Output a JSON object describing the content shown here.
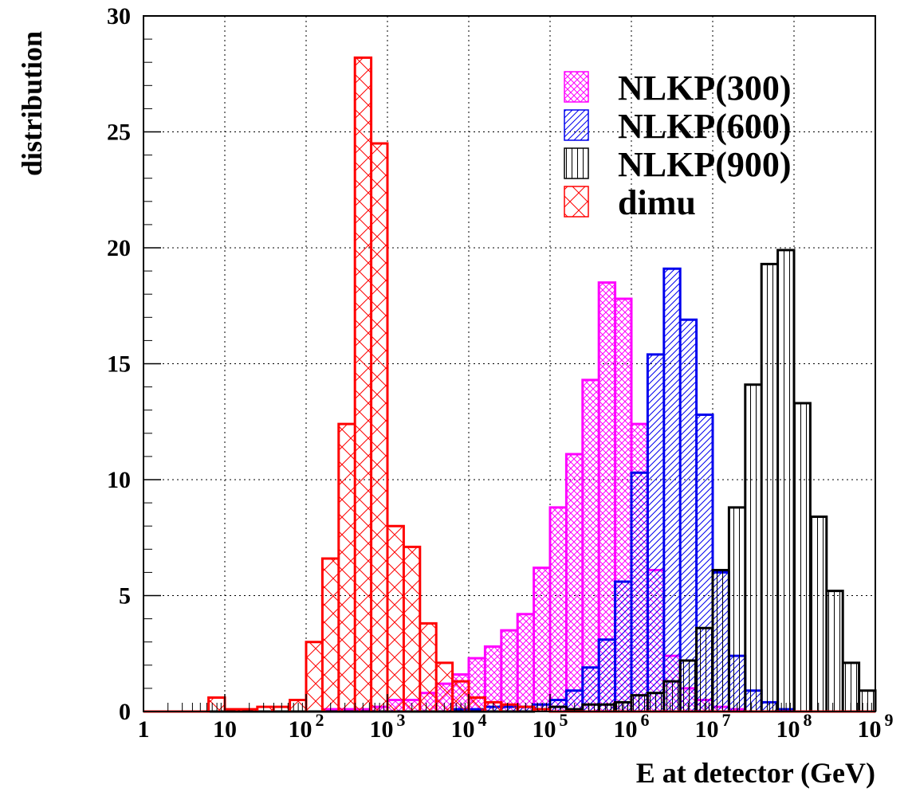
{
  "chart_data": {
    "type": "histogram",
    "xlabel": "E at detector (GeV)",
    "ylabel": "distribution",
    "x_scale": "log10",
    "xlim_log10": [
      0,
      9
    ],
    "ylim": [
      0,
      30
    ],
    "grid": true,
    "legend_position": "top-right",
    "bin_width_log10": 0.2,
    "x_ticks": [
      {
        "log10": 0,
        "base": "1",
        "exp": ""
      },
      {
        "log10": 1,
        "base": "10",
        "exp": ""
      },
      {
        "log10": 2,
        "base": "10",
        "exp": "2"
      },
      {
        "log10": 3,
        "base": "10",
        "exp": "3"
      },
      {
        "log10": 4,
        "base": "10",
        "exp": "4"
      },
      {
        "log10": 5,
        "base": "10",
        "exp": "5"
      },
      {
        "log10": 6,
        "base": "10",
        "exp": "6"
      },
      {
        "log10": 7,
        "base": "10",
        "exp": "7"
      },
      {
        "log10": 8,
        "base": "10",
        "exp": "8"
      },
      {
        "log10": 9,
        "base": "10",
        "exp": "9"
      }
    ],
    "y_ticks": [
      "0",
      "5",
      "10",
      "15",
      "20",
      "25",
      "30"
    ],
    "series": [
      {
        "name": "NLKP(300)",
        "color": "#ff00ff",
        "hatch": "crosshatch-dense",
        "bins": [
          {
            "x_log10": 2.4,
            "y": 0.1
          },
          {
            "x_log10": 2.6,
            "y": 0.1
          },
          {
            "x_log10": 2.8,
            "y": 0.1
          },
          {
            "x_log10": 3.0,
            "y": 0.2
          },
          {
            "x_log10": 3.2,
            "y": 0.5
          },
          {
            "x_log10": 3.4,
            "y": 0.5
          },
          {
            "x_log10": 3.6,
            "y": 0.8
          },
          {
            "x_log10": 3.8,
            "y": 1.2
          },
          {
            "x_log10": 4.0,
            "y": 1.6
          },
          {
            "x_log10": 4.2,
            "y": 2.3
          },
          {
            "x_log10": 4.4,
            "y": 2.8
          },
          {
            "x_log10": 4.6,
            "y": 3.5
          },
          {
            "x_log10": 4.8,
            "y": 4.2
          },
          {
            "x_log10": 5.0,
            "y": 6.2
          },
          {
            "x_log10": 5.2,
            "y": 8.8
          },
          {
            "x_log10": 5.4,
            "y": 11.1
          },
          {
            "x_log10": 5.6,
            "y": 14.3
          },
          {
            "x_log10": 5.8,
            "y": 18.5
          },
          {
            "x_log10": 6.0,
            "y": 17.8
          },
          {
            "x_log10": 6.2,
            "y": 12.4
          },
          {
            "x_log10": 6.4,
            "y": 6.1
          },
          {
            "x_log10": 6.6,
            "y": 2.4
          },
          {
            "x_log10": 6.8,
            "y": 1.0
          },
          {
            "x_log10": 7.0,
            "y": 0.5
          },
          {
            "x_log10": 7.2,
            "y": 0.2
          },
          {
            "x_log10": 7.4,
            "y": 0.1
          }
        ]
      },
      {
        "name": "NLKP(600)",
        "color": "#0000ee",
        "hatch": "diagonal",
        "bins": [
          {
            "x_log10": 4.0,
            "y": 0.1
          },
          {
            "x_log10": 4.2,
            "y": 0.1
          },
          {
            "x_log10": 4.4,
            "y": 0.2
          },
          {
            "x_log10": 4.6,
            "y": 0.2
          },
          {
            "x_log10": 4.8,
            "y": 0.2
          },
          {
            "x_log10": 5.0,
            "y": 0.3
          },
          {
            "x_log10": 5.2,
            "y": 0.5
          },
          {
            "x_log10": 5.4,
            "y": 0.9
          },
          {
            "x_log10": 5.6,
            "y": 1.9
          },
          {
            "x_log10": 5.8,
            "y": 3.1
          },
          {
            "x_log10": 6.0,
            "y": 5.6
          },
          {
            "x_log10": 6.2,
            "y": 10.3
          },
          {
            "x_log10": 6.4,
            "y": 15.4
          },
          {
            "x_log10": 6.6,
            "y": 19.1
          },
          {
            "x_log10": 6.8,
            "y": 16.9
          },
          {
            "x_log10": 7.0,
            "y": 12.8
          },
          {
            "x_log10": 7.2,
            "y": 6.0
          },
          {
            "x_log10": 7.4,
            "y": 2.4
          },
          {
            "x_log10": 7.6,
            "y": 0.9
          },
          {
            "x_log10": 7.8,
            "y": 0.4
          },
          {
            "x_log10": 8.0,
            "y": 0.1
          }
        ]
      },
      {
        "name": "NLKP(900)",
        "color": "#000000",
        "hatch": "vertical",
        "bins": [
          {
            "x_log10": 5.0,
            "y": 0.1
          },
          {
            "x_log10": 5.2,
            "y": 0.2
          },
          {
            "x_log10": 5.4,
            "y": 0.1
          },
          {
            "x_log10": 5.6,
            "y": 0.3
          },
          {
            "x_log10": 5.8,
            "y": 0.3
          },
          {
            "x_log10": 6.0,
            "y": 0.4
          },
          {
            "x_log10": 6.2,
            "y": 0.7
          },
          {
            "x_log10": 6.4,
            "y": 0.8
          },
          {
            "x_log10": 6.6,
            "y": 1.3
          },
          {
            "x_log10": 6.8,
            "y": 2.2
          },
          {
            "x_log10": 7.0,
            "y": 3.6
          },
          {
            "x_log10": 7.2,
            "y": 6.1
          },
          {
            "x_log10": 7.4,
            "y": 8.8
          },
          {
            "x_log10": 7.6,
            "y": 14.1
          },
          {
            "x_log10": 7.8,
            "y": 19.3
          },
          {
            "x_log10": 8.0,
            "y": 19.9
          },
          {
            "x_log10": 8.2,
            "y": 13.3
          },
          {
            "x_log10": 8.4,
            "y": 8.4
          },
          {
            "x_log10": 8.6,
            "y": 5.2
          },
          {
            "x_log10": 8.8,
            "y": 2.1
          },
          {
            "x_log10": 9.0,
            "y": 0.9
          }
        ]
      },
      {
        "name": "dimu",
        "color": "#ff0000",
        "hatch": "crosshatch-wide",
        "bins": [
          {
            "x_log10": 1.0,
            "y": 0.6
          },
          {
            "x_log10": 1.2,
            "y": 0.1
          },
          {
            "x_log10": 1.4,
            "y": 0.1
          },
          {
            "x_log10": 1.6,
            "y": 0.2
          },
          {
            "x_log10": 1.8,
            "y": 0.2
          },
          {
            "x_log10": 2.0,
            "y": 0.5
          },
          {
            "x_log10": 2.2,
            "y": 3.0
          },
          {
            "x_log10": 2.4,
            "y": 6.6
          },
          {
            "x_log10": 2.6,
            "y": 12.4
          },
          {
            "x_log10": 2.8,
            "y": 28.2
          },
          {
            "x_log10": 3.0,
            "y": 24.5
          },
          {
            "x_log10": 3.2,
            "y": 8.0
          },
          {
            "x_log10": 3.4,
            "y": 7.1
          },
          {
            "x_log10": 3.6,
            "y": 3.8
          },
          {
            "x_log10": 3.8,
            "y": 2.1
          },
          {
            "x_log10": 4.0,
            "y": 1.3
          },
          {
            "x_log10": 4.2,
            "y": 0.6
          },
          {
            "x_log10": 4.4,
            "y": 0.4
          },
          {
            "x_log10": 4.6,
            "y": 0.3
          },
          {
            "x_log10": 4.8,
            "y": 0.2
          },
          {
            "x_log10": 5.0,
            "y": 0.1
          }
        ]
      }
    ]
  }
}
